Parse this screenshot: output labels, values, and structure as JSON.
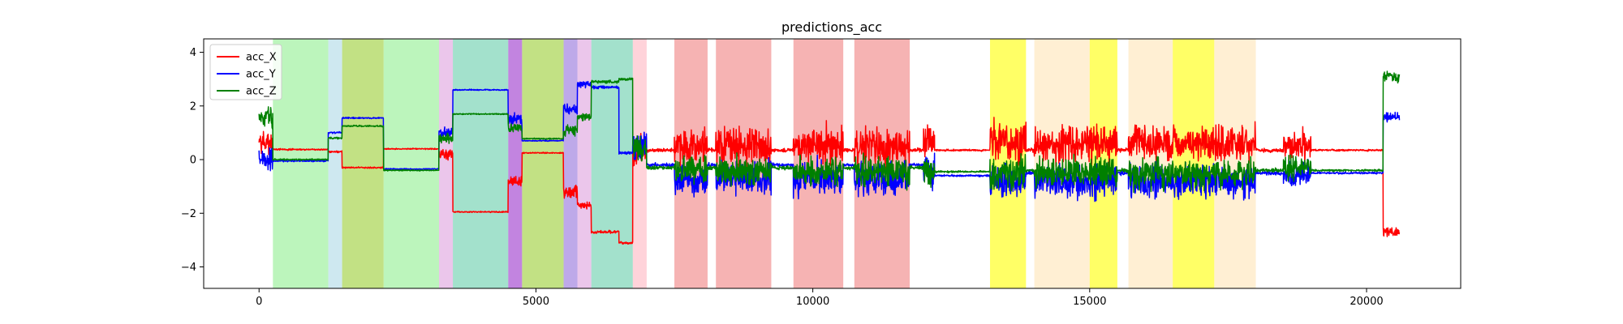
{
  "chart_data": {
    "type": "line",
    "title": "predictions_acc",
    "xlabel": "",
    "ylabel": "",
    "xlim": [
      -1000,
      21700
    ],
    "ylim": [
      -4.8,
      4.5
    ],
    "xticks": [
      0,
      5000,
      10000,
      15000,
      20000
    ],
    "yticks": [
      -4,
      -2,
      0,
      2,
      4
    ],
    "grid": false,
    "legend": {
      "placement": "top-left"
    },
    "colors": {
      "acc_X": "#ff0000",
      "acc_Y": "#0000ff",
      "acc_Z": "#008000"
    },
    "bands": [
      {
        "x0": 250,
        "x1": 1250,
        "color": "#90ee90",
        "opacity": 0.6
      },
      {
        "x0": 1250,
        "x1": 1500,
        "color": "#add8e6",
        "opacity": 0.6
      },
      {
        "x0": 1500,
        "x1": 2250,
        "color": "#9acd32",
        "opacity": 0.6
      },
      {
        "x0": 2250,
        "x1": 3250,
        "color": "#90ee90",
        "opacity": 0.6
      },
      {
        "x0": 3250,
        "x1": 3500,
        "color": "#dda0dd",
        "opacity": 0.6
      },
      {
        "x0": 3500,
        "x1": 4500,
        "color": "#66cdaa",
        "opacity": 0.6
      },
      {
        "x0": 4500,
        "x1": 4750,
        "color": "#9932cc",
        "opacity": 0.6
      },
      {
        "x0": 4750,
        "x1": 5500,
        "color": "#9acd32",
        "opacity": 0.6
      },
      {
        "x0": 5500,
        "x1": 5750,
        "color": "#9370db",
        "opacity": 0.6
      },
      {
        "x0": 5750,
        "x1": 6000,
        "color": "#dda0dd",
        "opacity": 0.6
      },
      {
        "x0": 6000,
        "x1": 6750,
        "color": "#66cdaa",
        "opacity": 0.6
      },
      {
        "x0": 6750,
        "x1": 7000,
        "color": "#ffb6c1",
        "opacity": 0.6
      },
      {
        "x0": 7500,
        "x1": 8100,
        "color": "#f08080",
        "opacity": 0.6
      },
      {
        "x0": 8250,
        "x1": 9250,
        "color": "#f08080",
        "opacity": 0.6
      },
      {
        "x0": 9650,
        "x1": 10550,
        "color": "#f08080",
        "opacity": 0.6
      },
      {
        "x0": 10750,
        "x1": 11750,
        "color": "#f08080",
        "opacity": 0.6
      },
      {
        "x0": 13200,
        "x1": 13850,
        "color": "#ffff00",
        "opacity": 0.6
      },
      {
        "x0": 14000,
        "x1": 15000,
        "color": "#ffe4b5",
        "opacity": 0.6
      },
      {
        "x0": 15000,
        "x1": 15500,
        "color": "#ffff00",
        "opacity": 0.6
      },
      {
        "x0": 15700,
        "x1": 16500,
        "color": "#ffe4b5",
        "opacity": 0.6
      },
      {
        "x0": 16500,
        "x1": 17250,
        "color": "#ffff00",
        "opacity": 0.6
      },
      {
        "x0": 17250,
        "x1": 18000,
        "color": "#ffe4b5",
        "opacity": 0.6
      }
    ],
    "segments": [
      {
        "x0": 0,
        "x1": 250,
        "X": 0.6,
        "Y": 0.0,
        "Z": 1.6,
        "noise": 0.6,
        "kind": "transition"
      },
      {
        "x0": 250,
        "x1": 1250,
        "X": 0.38,
        "Y": -0.05,
        "Z": 0.0,
        "noise": 0.04,
        "kind": "static"
      },
      {
        "x0": 1250,
        "x1": 1500,
        "X": 0.3,
        "Y": 1.0,
        "Z": 0.8,
        "noise": 0.05,
        "kind": "static"
      },
      {
        "x0": 1500,
        "x1": 2250,
        "X": -0.3,
        "Y": 1.55,
        "Z": 1.25,
        "noise": 0.04,
        "kind": "static"
      },
      {
        "x0": 2250,
        "x1": 3250,
        "X": 0.4,
        "Y": -0.35,
        "Z": -0.4,
        "noise": 0.03,
        "kind": "static"
      },
      {
        "x0": 3250,
        "x1": 3500,
        "X": 0.2,
        "Y": 1.0,
        "Z": 0.8,
        "noise": 0.3,
        "kind": "transition"
      },
      {
        "x0": 3500,
        "x1": 4500,
        "X": -1.95,
        "Y": 2.6,
        "Z": 1.7,
        "noise": 0.03,
        "kind": "static"
      },
      {
        "x0": 4500,
        "x1": 4750,
        "X": -0.8,
        "Y": 1.5,
        "Z": 1.2,
        "noise": 0.3,
        "kind": "transition"
      },
      {
        "x0": 4750,
        "x1": 5500,
        "X": 0.25,
        "Y": 0.7,
        "Z": 0.78,
        "noise": 0.03,
        "kind": "static"
      },
      {
        "x0": 5500,
        "x1": 5750,
        "X": -1.2,
        "Y": 1.9,
        "Z": 1.1,
        "noise": 0.3,
        "kind": "transition"
      },
      {
        "x0": 5750,
        "x1": 6000,
        "X": -1.7,
        "Y": 2.8,
        "Z": 1.6,
        "noise": 0.2,
        "kind": "static"
      },
      {
        "x0": 6000,
        "x1": 6500,
        "X": -2.7,
        "Y": 2.7,
        "Z": 2.9,
        "noise": 0.08,
        "kind": "static"
      },
      {
        "x0": 6500,
        "x1": 6750,
        "X": -3.1,
        "Y": 0.25,
        "Z": 3.0,
        "noise": 0.08,
        "kind": "static"
      },
      {
        "x0": 6750,
        "x1": 7000,
        "X": 0.3,
        "Y": 0.5,
        "Z": 0.4,
        "noise": 0.8,
        "kind": "transition"
      },
      {
        "x0": 7000,
        "x1": 7500,
        "X": 0.35,
        "Y": -0.2,
        "Z": -0.3,
        "noise": 0.1,
        "kind": "static"
      },
      {
        "x0": 7500,
        "x1": 8100,
        "X": 0.5,
        "Y": -0.7,
        "Z": -0.4,
        "noise": 0.9,
        "kind": "walk"
      },
      {
        "x0": 8100,
        "x1": 8250,
        "X": 0.35,
        "Y": -0.2,
        "Z": -0.3,
        "noise": 0.1,
        "kind": "static"
      },
      {
        "x0": 8250,
        "x1": 9250,
        "X": 0.5,
        "Y": -0.7,
        "Z": -0.4,
        "noise": 0.9,
        "kind": "walk"
      },
      {
        "x0": 9250,
        "x1": 9650,
        "X": 0.35,
        "Y": -0.2,
        "Z": -0.3,
        "noise": 0.1,
        "kind": "static"
      },
      {
        "x0": 9650,
        "x1": 10550,
        "X": 0.5,
        "Y": -0.7,
        "Z": -0.4,
        "noise": 0.9,
        "kind": "walk"
      },
      {
        "x0": 10550,
        "x1": 10750,
        "X": 0.35,
        "Y": -0.2,
        "Z": -0.3,
        "noise": 0.1,
        "kind": "static"
      },
      {
        "x0": 10750,
        "x1": 11750,
        "X": 0.5,
        "Y": -0.7,
        "Z": -0.4,
        "noise": 0.9,
        "kind": "walk"
      },
      {
        "x0": 11750,
        "x1": 12000,
        "X": 0.35,
        "Y": -0.2,
        "Z": -0.3,
        "noise": 0.1,
        "kind": "static"
      },
      {
        "x0": 12000,
        "x1": 12200,
        "X": 0.7,
        "Y": -0.5,
        "Z": -0.4,
        "noise": 0.9,
        "kind": "walk"
      },
      {
        "x0": 12200,
        "x1": 13200,
        "X": 0.35,
        "Y": -0.6,
        "Z": -0.45,
        "noise": 0.05,
        "kind": "static"
      },
      {
        "x0": 13200,
        "x1": 13850,
        "X": 0.7,
        "Y": -0.8,
        "Z": -0.5,
        "noise": 1.0,
        "kind": "walk"
      },
      {
        "x0": 13850,
        "x1": 14000,
        "X": 0.35,
        "Y": -0.5,
        "Z": -0.4,
        "noise": 0.1,
        "kind": "static"
      },
      {
        "x0": 14000,
        "x1": 15500,
        "X": 0.6,
        "Y": -0.8,
        "Z": -0.5,
        "noise": 0.9,
        "kind": "walk"
      },
      {
        "x0": 15500,
        "x1": 15700,
        "X": 0.35,
        "Y": -0.5,
        "Z": -0.4,
        "noise": 0.1,
        "kind": "static"
      },
      {
        "x0": 15700,
        "x1": 18000,
        "X": 0.6,
        "Y": -0.8,
        "Z": -0.5,
        "noise": 0.9,
        "kind": "walk"
      },
      {
        "x0": 18000,
        "x1": 18500,
        "X": 0.35,
        "Y": -0.5,
        "Z": -0.4,
        "noise": 0.1,
        "kind": "static"
      },
      {
        "x0": 18500,
        "x1": 19000,
        "X": 0.5,
        "Y": -0.6,
        "Z": -0.3,
        "noise": 0.7,
        "kind": "walk"
      },
      {
        "x0": 19000,
        "x1": 20300,
        "X": 0.35,
        "Y": -0.5,
        "Z": -0.4,
        "noise": 0.05,
        "kind": "static"
      },
      {
        "x0": 20300,
        "x1": 20600,
        "X": -2.7,
        "Y": 1.6,
        "Z": 3.1,
        "noise": 0.3,
        "kind": "transition"
      }
    ],
    "series": [
      {
        "name": "acc_X",
        "key": "X"
      },
      {
        "name": "acc_Y",
        "key": "Y"
      },
      {
        "name": "acc_Z",
        "key": "Z"
      }
    ]
  }
}
